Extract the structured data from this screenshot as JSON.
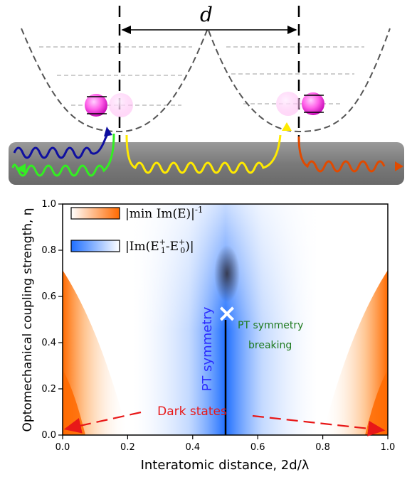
{
  "top": {
    "distance_label": "d"
  },
  "legend": {
    "orange_label": "|min Im(E)|",
    "orange_exp": "-1",
    "blue_label": "|Im(E",
    "blue_mid": "-E",
    "blue_end": ")|",
    "blue_sub1": "1",
    "blue_sup1": "+",
    "blue_sub0": "0",
    "blue_sup0": "+"
  },
  "annotations": {
    "pt_symmetry": "PT symmetry",
    "pt_breaking_1": "PT symmetry",
    "pt_breaking_2": "breaking",
    "dark_states": "Dark states",
    "marker": "×"
  },
  "chart_data": {
    "type": "heatmap",
    "xlabel": "Interatomic distance, 2d/λ",
    "ylabel": "Optomechanical coupling strength, η",
    "xlim": [
      0.0,
      1.0
    ],
    "ylim": [
      0.0,
      1.0
    ],
    "x_ticks": [
      "0.0",
      "0.2",
      "0.4",
      "0.6",
      "0.8",
      "1.0"
    ],
    "y_ticks": [
      "0.0",
      "0.2",
      "0.4",
      "0.6",
      "0.8",
      "1.0"
    ],
    "exceptional_point": {
      "x": 0.5,
      "y": 0.52
    },
    "colors": {
      "orange": "#ff6a00",
      "blue": "#1f6fff",
      "line": "#000000",
      "dark_states": "#ff2020",
      "pt_symmetry_text": "#2b2bff",
      "pt_breaking_text": "#1e7a1e"
    }
  }
}
